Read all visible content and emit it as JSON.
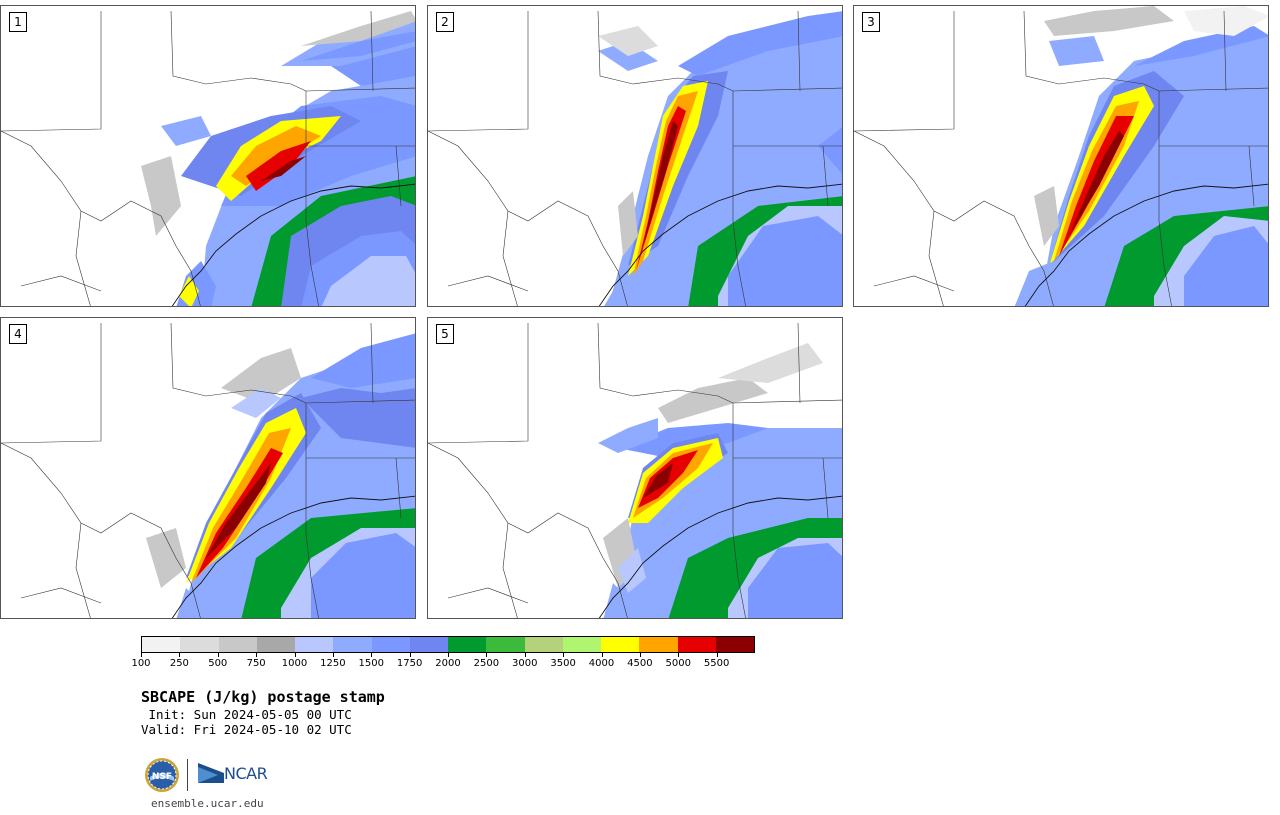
{
  "panels": [
    {
      "label": "1"
    },
    {
      "label": "2"
    },
    {
      "label": "3"
    },
    {
      "label": "4"
    },
    {
      "label": "5"
    }
  ],
  "colorbar": {
    "labels": [
      "100",
      "250",
      "500",
      "750",
      "1000",
      "1250",
      "1500",
      "1750",
      "2000",
      "2500",
      "3000",
      "3500",
      "4000",
      "4500",
      "5000",
      "5500"
    ],
    "colors": [
      "#f2f2f2",
      "#dcdcdc",
      "#c8c8c8",
      "#a8a8a8",
      "#b8c8ff",
      "#8fabff",
      "#7a98ff",
      "#6f86f0",
      "#009a2e",
      "#3cba3c",
      "#b4d27a",
      "#b0f570",
      "#ffff00",
      "#ffa500",
      "#e60000",
      "#8b0000"
    ]
  },
  "title": "SBCAPE (J/kg) postage stamp",
  "init": " Init: Sun 2024-05-05 00 UTC",
  "valid": "Valid: Fri 2024-05-10 02 UTC",
  "logos": {
    "ncar_text": "NCAR",
    "nsf_text": "NSF"
  },
  "url": "ensemble.ucar.edu"
}
